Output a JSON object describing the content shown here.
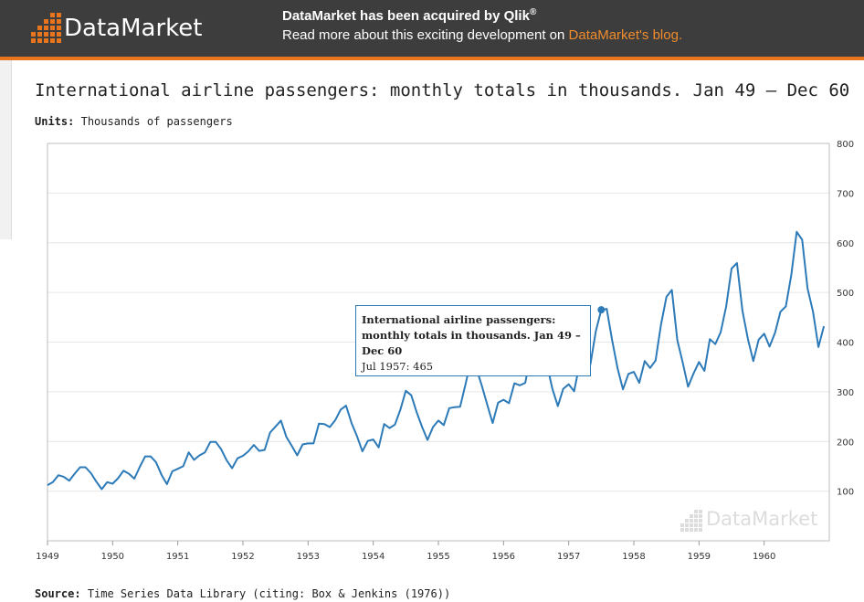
{
  "header": {
    "logo_text": "DataMarket",
    "announce_title": "DataMarket has been acquired by Qlik",
    "announce_trademark": "®",
    "announce_body_prefix": "Read more about this exciting development on ",
    "announce_link": "DataMarket's blog."
  },
  "page": {
    "title": "International airline passengers: monthly totals in thousands. Jan 49 – Dec 60",
    "units_label": "Units:",
    "units_value": "Thousands of passengers",
    "source_label": "Source:",
    "source_value": "Time Series Data Library (citing: Box & Jenkins (1976))"
  },
  "tooltip": {
    "title": "International airline passengers: monthly totals in thousands. Jan 49 – Dec 60",
    "value": "Jul 1957: 465"
  },
  "watermark_text": "DataMarket",
  "colors": {
    "line": "#2c7ab8",
    "accent": "#e8741e",
    "header_bg": "#3d3d3d"
  },
  "chart_data": {
    "type": "line",
    "title": "International airline passengers: monthly totals in thousands. Jan 49 – Dec 60",
    "xlabel": "",
    "ylabel": "",
    "x_start": "1949-01",
    "x_end": "1960-12",
    "x_ticks": [
      "1949",
      "1950",
      "1951",
      "1952",
      "1953",
      "1954",
      "1955",
      "1956",
      "1957",
      "1958",
      "1959",
      "1960"
    ],
    "y_ticks": [
      100,
      200,
      300,
      400,
      500,
      600,
      700,
      800
    ],
    "ylim": [
      0,
      800
    ],
    "y_axis_side": "right",
    "grid": true,
    "highlight": {
      "x": "1957-07",
      "value": 465
    },
    "series": [
      {
        "values": [
          112,
          118,
          132,
          129,
          121,
          135,
          148,
          148,
          136,
          119,
          104,
          118,
          115,
          126,
          141,
          135,
          125,
          149,
          170,
          170,
          158,
          133,
          114,
          140,
          145,
          150,
          178,
          163,
          172,
          178,
          199,
          199,
          184,
          162,
          146,
          166,
          171,
          180,
          193,
          181,
          183,
          218,
          230,
          242,
          209,
          191,
          172,
          194,
          196,
          196,
          236,
          235,
          229,
          243,
          264,
          272,
          237,
          211,
          180,
          201,
          204,
          188,
          235,
          227,
          234,
          264,
          302,
          293,
          259,
          229,
          203,
          229,
          242,
          233,
          267,
          269,
          270,
          315,
          364,
          347,
          312,
          274,
          237,
          278,
          284,
          277,
          317,
          313,
          318,
          374,
          413,
          405,
          355,
          306,
          271,
          306,
          315,
          301,
          356,
          348,
          355,
          422,
          465,
          467,
          404,
          347,
          305,
          336,
          340,
          318,
          362,
          348,
          363,
          435,
          491,
          505,
          404,
          359,
          310,
          337,
          360,
          342,
          406,
          396,
          420,
          472,
          548,
          559,
          463,
          407,
          362,
          405,
          417,
          391,
          419,
          461,
          472,
          535,
          622,
          606,
          508,
          461,
          390,
          432
        ]
      }
    ]
  }
}
